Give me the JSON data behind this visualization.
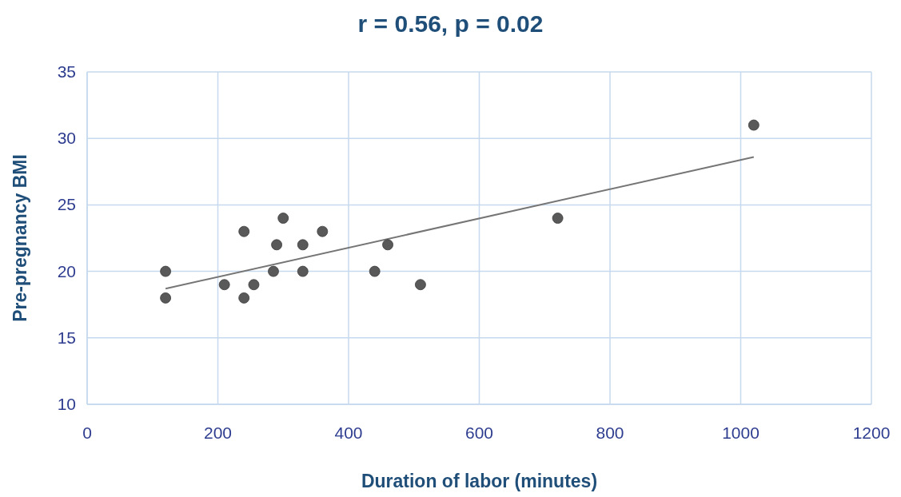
{
  "chart_data": {
    "type": "scatter",
    "title": "r = 0.56, p = 0.02",
    "xlabel": "Duration of labor (minutes)",
    "ylabel": "Pre-pregnancy BMI",
    "xlim": [
      0,
      1200
    ],
    "xticks": [
      0,
      200,
      400,
      600,
      800,
      1000,
      1200
    ],
    "ylim": [
      10,
      35
    ],
    "yticks": [
      10,
      15,
      20,
      25,
      30,
      35
    ],
    "grid": true,
    "series": [
      {
        "color": "#595959",
        "marker": "circle",
        "x": [
          120,
          120,
          210,
          240,
          240,
          255,
          285,
          290,
          300,
          330,
          330,
          360,
          440,
          460,
          510,
          720,
          1020
        ],
        "values": [
          20,
          18,
          19,
          23,
          18,
          19,
          20,
          22,
          24,
          22,
          20,
          23,
          20,
          22,
          19,
          24,
          31
        ]
      },
      {
        "type": "line",
        "color": "#757575",
        "marker": "none",
        "x": [
          120,
          1020
        ],
        "values": [
          18.7,
          28.6
        ]
      }
    ]
  }
}
